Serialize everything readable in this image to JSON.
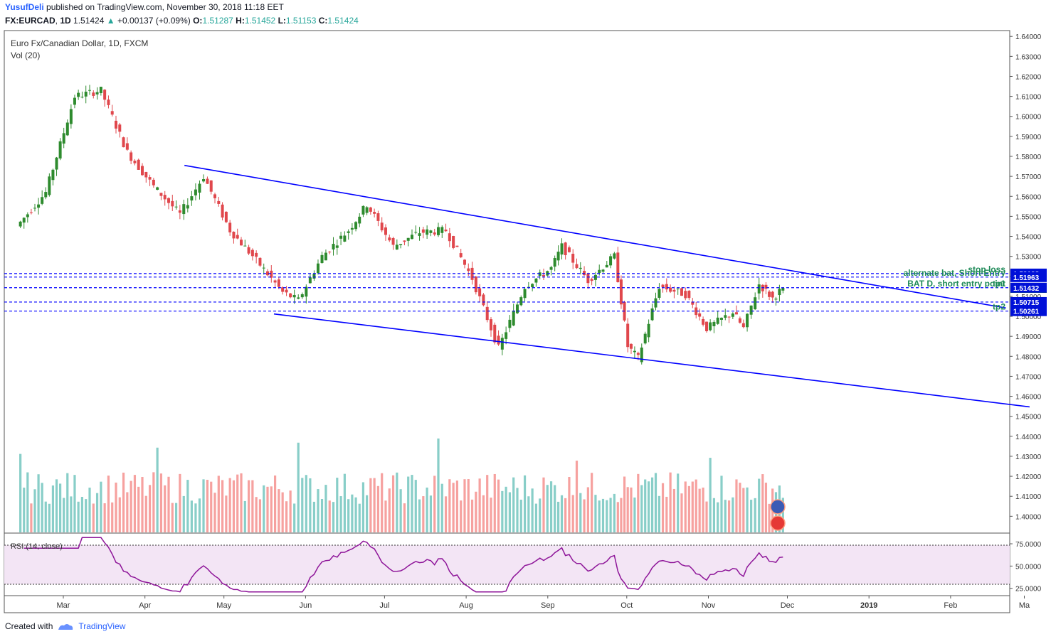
{
  "header": {
    "author": "YusufDeli",
    "published_text": "published on TradingView.com, November 30, 2018 11:18 EET",
    "symbol": "FX:EURCAD",
    "interval": "1D",
    "last": "1.51424",
    "change": "+0.00137 (+0.09%)",
    "open_label": "O:",
    "open": "1.51287",
    "high_label": "H:",
    "high": "1.51452",
    "low_label": "L:",
    "low": "1.51153",
    "close_label": "C:",
    "close": "1.51424"
  },
  "chart_title": "Euro Fx/Canadian Dollar, 1D, FXCM",
  "volume_label": "Vol (20)",
  "rsi_label": "RSI (14, close)",
  "footer": {
    "created_with": "Created with",
    "brand": "TradingView"
  },
  "colors": {
    "up": "#26a69a",
    "down": "#ef5350",
    "up_candle": "#2e8b2e",
    "down_candle": "#e0474c",
    "trendline": "#0000ff",
    "level": "#0000ff",
    "label_bg": "#0010d8",
    "rsi_line": "#8e1599",
    "rsi_band": "#f3e5f5",
    "annot": "#1e8a58",
    "current_price_bg": "#1a8a1a"
  },
  "icons": [
    "us-flag-icon",
    "canada-flag-icon",
    "tradingview-logo-icon"
  ],
  "chart_data": {
    "type": "candlestick",
    "title": "Euro Fx/Canadian Dollar, 1D, FXCM",
    "x_ticks": [
      "Mar",
      "Apr",
      "May",
      "Jun",
      "Jul",
      "Aug",
      "Sep",
      "Oct",
      "Nov",
      "Dec",
      "2019",
      "Feb",
      "Ma"
    ],
    "price_ticks": [
      "1.64000",
      "1.63000",
      "1.62000",
      "1.61000",
      "1.60000",
      "1.59000",
      "1.58000",
      "1.57000",
      "1.56000",
      "1.55000",
      "1.54000",
      "1.53000",
      "1.52000",
      "1.51000",
      "1.50000",
      "1.49000",
      "1.48000",
      "1.47000",
      "1.46000",
      "1.45000",
      "1.44000",
      "1.43000",
      "1.42000",
      "1.41000",
      "1.40000"
    ],
    "ylim": [
      1.3955,
      1.6415
    ],
    "rsi_ticks": [
      "75.0000",
      "50.0000",
      "25.0000"
    ],
    "rsi_ylim": [
      20,
      83
    ],
    "rsi_bands": [
      70,
      30
    ],
    "key_points": [
      {
        "date": "2018-02-12",
        "price": 1.545
      },
      {
        "date": "2018-02-23",
        "price": 1.562
      },
      {
        "date": "2018-03-06",
        "price": 1.61
      },
      {
        "date": "2018-03-16",
        "price": 1.613
      },
      {
        "date": "2018-03-26",
        "price": 1.582
      },
      {
        "date": "2018-04-05",
        "price": 1.565
      },
      {
        "date": "2018-04-15",
        "price": 1.551
      },
      {
        "date": "2018-04-24",
        "price": 1.57
      },
      {
        "date": "2018-05-04",
        "price": 1.543
      },
      {
        "date": "2018-05-14",
        "price": 1.528
      },
      {
        "date": "2018-05-24",
        "price": 1.512
      },
      {
        "date": "2018-05-30",
        "price": 1.508
      },
      {
        "date": "2018-06-08",
        "price": 1.53
      },
      {
        "date": "2018-06-18",
        "price": 1.543
      },
      {
        "date": "2018-06-25",
        "price": 1.556
      },
      {
        "date": "2018-07-05",
        "price": 1.535
      },
      {
        "date": "2018-07-15",
        "price": 1.542
      },
      {
        "date": "2018-07-25",
        "price": 1.543
      },
      {
        "date": "2018-08-04",
        "price": 1.519
      },
      {
        "date": "2018-08-14",
        "price": 1.484
      },
      {
        "date": "2018-08-24",
        "price": 1.515
      },
      {
        "date": "2018-09-03",
        "price": 1.524
      },
      {
        "date": "2018-09-07",
        "price": 1.535
      },
      {
        "date": "2018-09-17",
        "price": 1.518
      },
      {
        "date": "2018-09-27",
        "price": 1.53
      },
      {
        "date": "2018-10-02",
        "price": 1.485
      },
      {
        "date": "2018-10-06",
        "price": 1.479
      },
      {
        "date": "2018-10-14",
        "price": 1.515
      },
      {
        "date": "2018-10-24",
        "price": 1.511
      },
      {
        "date": "2018-11-01",
        "price": 1.494
      },
      {
        "date": "2018-11-11",
        "price": 1.502
      },
      {
        "date": "2018-11-15",
        "price": 1.494
      },
      {
        "date": "2018-11-21",
        "price": 1.516
      },
      {
        "date": "2018-11-26",
        "price": 1.509
      },
      {
        "date": "2018-11-30",
        "price": 1.51424
      }
    ],
    "trendlines": [
      {
        "name": "upper",
        "from": {
          "date": "2018-04-16",
          "price": 1.5755
        },
        "to": {
          "date": "2019-02-22",
          "price": 1.5042
        }
      },
      {
        "name": "lower",
        "from": {
          "date": "2018-05-20",
          "price": 1.5012
        },
        "to": {
          "date": "2019-03-03",
          "price": 1.4547
        }
      }
    ],
    "levels": [
      {
        "price": 1.52138,
        "label": "1.52138",
        "annotation": "stop loss",
        "annotation2": "alternate bat, Short Entry"
      },
      {
        "price": 1.51963,
        "label": "1.51963"
      },
      {
        "price": 1.51424,
        "label": "1.51424",
        "annotation": "BAT D, short entry point",
        "current": true
      },
      {
        "price": 1.51432,
        "label": "1.51432",
        "annotation": "tp1"
      },
      {
        "price": 1.50715,
        "label": "1.50715"
      },
      {
        "price": 1.50261,
        "label": "1.50261",
        "annotation": "tp2"
      }
    ]
  }
}
